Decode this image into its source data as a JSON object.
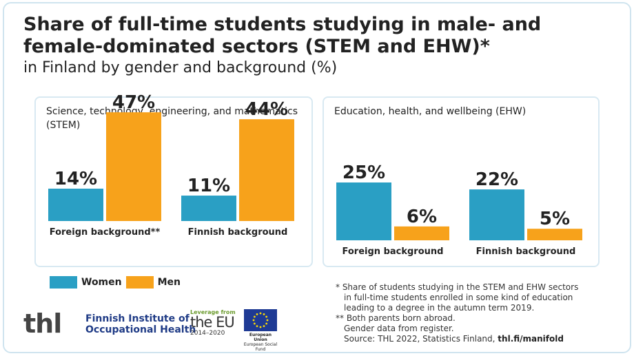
{
  "title": "Share of full-time students studying in male- and female-dominated sectors (STEM and EHW)*",
  "subtitle": "in Finland by gender and background (%)",
  "colors": {
    "women": "#2a9fc4",
    "men": "#f7a21b"
  },
  "chart_data": [
    {
      "type": "bar",
      "title": "Science, technology, engineering, and mathematics (STEM)",
      "categories": [
        "Foreign background**",
        "Finnish background"
      ],
      "series": [
        {
          "name": "Women",
          "values": [
            14,
            11
          ]
        },
        {
          "name": "Men",
          "values": [
            47,
            44
          ]
        }
      ],
      "unit": "%",
      "ylim": [
        0,
        50
      ]
    },
    {
      "type": "bar",
      "title": "Education, health, and wellbeing (EHW)",
      "categories": [
        "Foreign background",
        "Finnish background"
      ],
      "series": [
        {
          "name": "Women",
          "values": [
            25,
            22
          ]
        },
        {
          "name": "Men",
          "values": [
            6,
            5
          ]
        }
      ],
      "unit": "%",
      "ylim": [
        0,
        50
      ]
    }
  ],
  "legend": {
    "women": "Women",
    "men": "Men"
  },
  "notes": {
    "n1": "* Share of students studying in the STEM and EHW sectors",
    "n2": "in full-time students enrolled in some kind of education",
    "n3": "leading to a degree in the autumn term 2019.",
    "n4": "** Both parents born abroad.",
    "n5": "Gender data from register.",
    "n6": "Source: THL 2022, Statistics Finland,",
    "n7": "thl.fi/manifold"
  },
  "logos": {
    "thl": "thl",
    "fioh_line1": "Finnish Institute of",
    "fioh_line2": "Occupational Health",
    "eu_leverage": "Leverage from",
    "eu_name": "the EU",
    "eu_years": "2014–2020",
    "eu_caption1": "European Union",
    "eu_caption2": "European Social Fund"
  }
}
